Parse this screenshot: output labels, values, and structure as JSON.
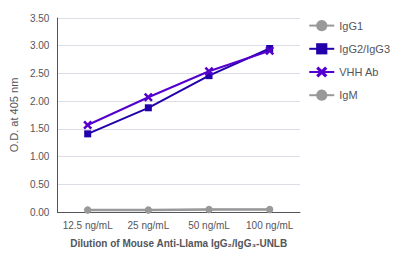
{
  "chart_data": {
    "type": "line",
    "categories": [
      "12.5 ng/mL",
      "25 ng/mL",
      "50 ng/mL",
      "100 ng/mL"
    ],
    "series": [
      {
        "name": "IgG1",
        "color": "#999999",
        "marker": "circle",
        "line_style": "solid",
        "values": [
          0.04,
          0.04,
          0.05,
          0.05
        ]
      },
      {
        "name": "IgG2/IgG3",
        "color": "#2200aa",
        "marker": "square",
        "line_style": "solid",
        "values": [
          1.41,
          1.88,
          2.46,
          2.95
        ]
      },
      {
        "name": "VHH Ab",
        "color": "#5500cc",
        "marker": "x",
        "line_style": "solid",
        "values": [
          1.57,
          2.07,
          2.54,
          2.91
        ]
      },
      {
        "name": "IgM",
        "color": "#999999",
        "marker": "circle",
        "line_style": "solid",
        "values": [
          0.03,
          0.03,
          0.04,
          0.04
        ]
      }
    ],
    "xlabel": "Dilution of Mouse Anti-Llama IgG₂/IgG₃-UNLB",
    "ylabel": "O.D. at 405 nm",
    "ylim": [
      0.0,
      3.5
    ],
    "yticks": [
      {
        "value": 0.0,
        "label": "0.00"
      },
      {
        "value": 0.5,
        "label": "0.50"
      },
      {
        "value": 1.0,
        "label": "1.00"
      },
      {
        "value": 1.5,
        "label": "1.50"
      },
      {
        "value": 2.0,
        "label": "2.00"
      },
      {
        "value": 2.5,
        "label": "2.50"
      },
      {
        "value": 3.0,
        "label": "3.00"
      },
      {
        "value": 3.5,
        "label": "3.50"
      }
    ],
    "grid": true,
    "legend": "right"
  }
}
